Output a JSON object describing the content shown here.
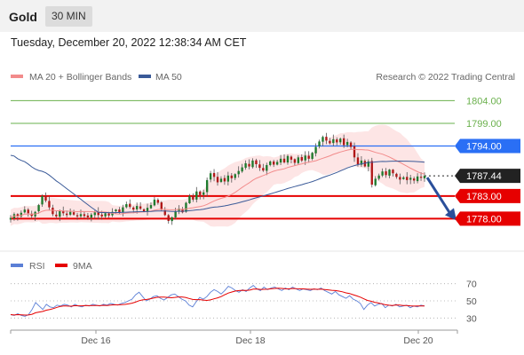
{
  "header": {
    "symbol": "Gold",
    "interval": "30 MIN",
    "datetime": "Tuesday, December 20, 2022 12:38:34 AM CET"
  },
  "chart_data": [
    {
      "type": "candlestick",
      "legend": [
        {
          "name": "MA 20 + Bollinger Bands",
          "color": "#f28b8b"
        },
        {
          "name": "MA 50",
          "color": "#3a5a98"
        }
      ],
      "source": "Research © 2022 Trading Central",
      "x_tick_labels": [
        "Dec 16",
        "Dec 18",
        "Dec 20"
      ],
      "ylim": [
        1773,
        1807
      ],
      "levels": [
        {
          "value": 1804.0,
          "label": "1804.00",
          "kind": "resistance-target",
          "color": "#6ab04c"
        },
        {
          "value": 1799.0,
          "label": "1799.00",
          "kind": "resistance-target",
          "color": "#6ab04c"
        },
        {
          "value": 1794.0,
          "label": "1794.00",
          "kind": "pivot",
          "color": "#2a6ff5"
        },
        {
          "value": 1787.44,
          "label": "1787.44",
          "kind": "last-price",
          "color": "#222222"
        },
        {
          "value": 1783.0,
          "label": "1783.00",
          "kind": "support-target",
          "color": "#e60000"
        },
        {
          "value": 1778.0,
          "label": "1778.00",
          "kind": "support-target",
          "color": "#e60000"
        }
      ],
      "close_series": [
        1778.2,
        1779.0,
        1778.5,
        1779.3,
        1780.0,
        1779.2,
        1778.6,
        1779.5,
        1781.0,
        1783.0,
        1782.0,
        1780.5,
        1779.0,
        1778.5,
        1779.8,
        1779.2,
        1778.8,
        1779.5,
        1778.9,
        1778.5,
        1779.0,
        1778.6,
        1778.3,
        1778.9,
        1779.4,
        1778.8,
        1778.5,
        1779.2,
        1778.7,
        1779.5,
        1780.0,
        1779.3,
        1780.5,
        1781.2,
        1780.6,
        1780.0,
        1780.8,
        1780.2,
        1779.6,
        1780.4,
        1781.0,
        1782.2,
        1781.5,
        1780.0,
        1778.8,
        1777.5,
        1778.3,
        1779.6,
        1780.2,
        1779.4,
        1781.5,
        1783.0,
        1782.2,
        1784.0,
        1783.2,
        1783.8,
        1786.5,
        1788.0,
        1787.2,
        1786.0,
        1786.8,
        1786.2,
        1787.5,
        1786.9,
        1787.8,
        1788.5,
        1789.3,
        1790.2,
        1789.5,
        1790.8,
        1790.0,
        1789.2,
        1788.6,
        1789.8,
        1790.6,
        1789.9,
        1790.5,
        1791.2,
        1790.4,
        1791.8,
        1791.0,
        1790.3,
        1791.5,
        1790.8,
        1791.9,
        1791.2,
        1792.5,
        1793.8,
        1795.0,
        1796.0,
        1795.2,
        1794.6,
        1795.5,
        1794.8,
        1795.6,
        1794.2,
        1794.9,
        1793.8,
        1791.5,
        1790.0,
        1790.8,
        1789.5,
        1790.6,
        1785.5,
        1786.8,
        1787.5,
        1788.4,
        1787.6,
        1788.8,
        1788.0,
        1787.2,
        1786.6,
        1787.1,
        1786.5,
        1787.0,
        1786.4,
        1787.3,
        1787.0,
        1787.44
      ],
      "projection": {
        "from": 1787.44,
        "to": 1778.0,
        "direction": "down"
      }
    },
    {
      "type": "line",
      "legend": [
        {
          "name": "RSI",
          "color": "#5b7fd6"
        },
        {
          "name": "9MA",
          "color": "#e60000"
        }
      ],
      "y_tick_labels": [
        "70",
        "50",
        "30"
      ],
      "ylim": [
        20,
        80
      ],
      "rsi_series": [
        34,
        33,
        35,
        33,
        32,
        34,
        40,
        48,
        44,
        40,
        46,
        43,
        42,
        45,
        44,
        46,
        45,
        43,
        46,
        44,
        43,
        45,
        44,
        46,
        45,
        44,
        46,
        45,
        47,
        46,
        45,
        47,
        48,
        50,
        52,
        57,
        60,
        55,
        50,
        52,
        55,
        56,
        53,
        51,
        54,
        57,
        58,
        55,
        52,
        50,
        45,
        43,
        49,
        54,
        52,
        55,
        60,
        63,
        61,
        58,
        62,
        67,
        65,
        62,
        60,
        63,
        61,
        65,
        68,
        64,
        62,
        66,
        63,
        65,
        66,
        64,
        62,
        65,
        63,
        66,
        64,
        62,
        64,
        63,
        62,
        64,
        63,
        65,
        62,
        60,
        58,
        61,
        57,
        55,
        53,
        56,
        52,
        50,
        47,
        40,
        45,
        48,
        44,
        46,
        47,
        42,
        45,
        44,
        46,
        43,
        44,
        45,
        42,
        44,
        43,
        45,
        44
      ]
    }
  ]
}
